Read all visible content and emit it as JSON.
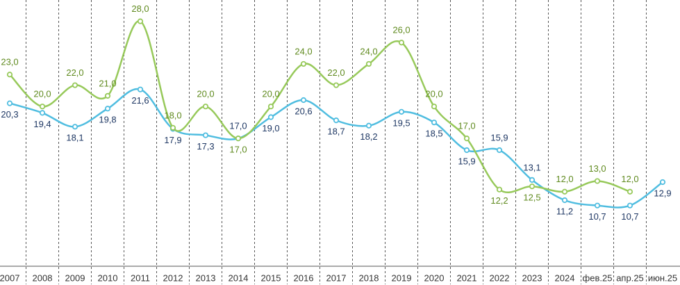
{
  "chart_data": {
    "type": "line",
    "categories": [
      "2007",
      "2008",
      "2009",
      "2010",
      "2011",
      "2012",
      "2013",
      "2014",
      "2015",
      "2016",
      "2017",
      "2018",
      "2019",
      "2020",
      "2021",
      "2022",
      "2023",
      "2024",
      "фев.25",
      "апр.25",
      "июн.25"
    ],
    "series": [
      {
        "color": "#4fbde0",
        "label_color": "#1f3864",
        "values": [
          20.3,
          19.4,
          18.1,
          19.8,
          21.6,
          17.9,
          17.3,
          17.0,
          19.0,
          20.6,
          18.7,
          18.2,
          19.5,
          18.5,
          15.9,
          15.9,
          13.1,
          11.2,
          10.7,
          10.7,
          12.9
        ],
        "value_labels": [
          "20,3",
          "19,4",
          "18,1",
          "19,8",
          "21,6",
          "17,9",
          "17,3",
          "17,0",
          "19,0",
          "20,6",
          "18,7",
          "18,2",
          "19,5",
          "18,5",
          "15,9",
          "15,9",
          "13,1",
          "11,2",
          "10,7",
          "10,7",
          "12,9"
        ]
      },
      {
        "color": "#97c95a",
        "label_color": "#5f8a1e",
        "values": [
          23.0,
          20.0,
          22.0,
          21.0,
          28.0,
          18.0,
          20.0,
          17.0,
          20.0,
          24.0,
          22.0,
          24.0,
          26.0,
          20.0,
          17.0,
          12.2,
          12.5,
          12.0,
          13.0,
          12.0,
          null
        ],
        "value_labels": [
          "23,0",
          "20,0",
          "22,0",
          "21,0",
          "28,0",
          "18,0",
          "20,0",
          "17,0",
          "20,0",
          "24,0",
          "22,0",
          "24,0",
          "26,0",
          "20,0",
          "17,0",
          "12,2",
          "12,5",
          "12,0",
          "13,0",
          "12,0",
          null
        ]
      }
    ],
    "ylim": [
      5,
      30
    ]
  }
}
